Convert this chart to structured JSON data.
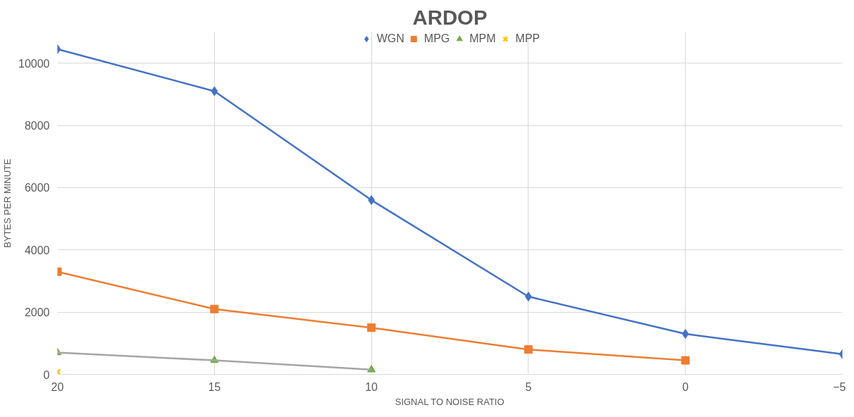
{
  "chart_data": {
    "type": "line",
    "title": "ARDOP",
    "xlabel": "SIGNAL TO NOISE RATIO",
    "ylabel": "BYTES PER MINUTE",
    "x": [
      20,
      15,
      10,
      5,
      0,
      -5
    ],
    "series": [
      {
        "name": "WGN",
        "color": "#4472c4",
        "marker": "diamond",
        "values": [
          10450,
          9100,
          5600,
          2500,
          1300,
          650
        ]
      },
      {
        "name": "MPG",
        "color": "#ed7d31",
        "marker": "square",
        "values": [
          3300,
          2100,
          1500,
          800,
          450,
          null
        ]
      },
      {
        "name": "MPM",
        "color": "#70ad47",
        "type": "scatter",
        "marker": "triangle",
        "values": [
          700,
          450,
          150,
          null,
          null,
          null
        ]
      },
      {
        "color": "#a5a5a5",
        "marker": "none",
        "values": [
          700,
          450,
          150,
          null,
          null,
          null
        ]
      },
      {
        "name": "MPP",
        "color": "#ffc000",
        "type": "scatter",
        "marker": "cross",
        "values": [
          80,
          null,
          null,
          null,
          null,
          null
        ]
      }
    ],
    "xlim": [
      20,
      -5
    ],
    "xticks": [
      20,
      15,
      10,
      5,
      0,
      -5
    ],
    "ylim": [
      0,
      11000
    ],
    "yticks": [
      0,
      2000,
      4000,
      6000,
      8000,
      10000
    ],
    "grid": true,
    "legend": "top"
  }
}
